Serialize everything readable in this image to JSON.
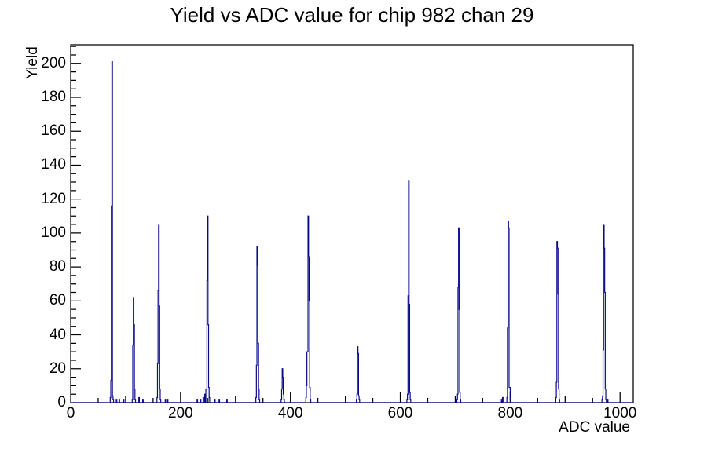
{
  "chart_data": {
    "type": "bar",
    "subtype": "root-style-histogram-outline",
    "title": "Yield vs ADC value for chip 982 chan 29",
    "xlabel": "ADC value",
    "ylabel": "Yield",
    "xlim": [
      0,
      1024
    ],
    "ylim": [
      0,
      211
    ],
    "x_tick_values": [
      0,
      200,
      400,
      600,
      800,
      1000
    ],
    "x_tick_labels": [
      "0",
      "200",
      "400",
      "600",
      "800",
      "1000"
    ],
    "x_mid_tick_step": 100,
    "x_minor_tick_step": 50,
    "y_tick_values": [
      0,
      20,
      40,
      60,
      80,
      100,
      120,
      140,
      160,
      180,
      200
    ],
    "y_tick_labels": [
      "0",
      "20",
      "40",
      "60",
      "80",
      "100",
      "120",
      "140",
      "160",
      "180",
      "200"
    ],
    "y_minor_tick_step": 5,
    "grid": false,
    "legend": false,
    "bin_width_adc": 1,
    "line_color": "#0a0a8c",
    "frame_color": "#000000",
    "background_color": "#ffffff",
    "nonzero_bins": [
      [
        72,
        3
      ],
      [
        73,
        13
      ],
      [
        74,
        116
      ],
      [
        75,
        201
      ],
      [
        76,
        4
      ],
      [
        77,
        2
      ],
      [
        83,
        2
      ],
      [
        88,
        2
      ],
      [
        96,
        2
      ],
      [
        112,
        2
      ],
      [
        113,
        34
      ],
      [
        114,
        62
      ],
      [
        115,
        46
      ],
      [
        116,
        8
      ],
      [
        117,
        2
      ],
      [
        124,
        3
      ],
      [
        131,
        2
      ],
      [
        157,
        3
      ],
      [
        158,
        23
      ],
      [
        159,
        66
      ],
      [
        160,
        105
      ],
      [
        161,
        57
      ],
      [
        162,
        8
      ],
      [
        163,
        2
      ],
      [
        172,
        2
      ],
      [
        176,
        2
      ],
      [
        230,
        2
      ],
      [
        236,
        2
      ],
      [
        241,
        3
      ],
      [
        244,
        5
      ],
      [
        246,
        8
      ],
      [
        247,
        8
      ],
      [
        248,
        72
      ],
      [
        249,
        110
      ],
      [
        250,
        46
      ],
      [
        251,
        9
      ],
      [
        252,
        3
      ],
      [
        262,
        2
      ],
      [
        270,
        2
      ],
      [
        284,
        2
      ],
      [
        337,
        3
      ],
      [
        338,
        22
      ],
      [
        339,
        92
      ],
      [
        340,
        81
      ],
      [
        341,
        35
      ],
      [
        342,
        8
      ],
      [
        343,
        2
      ],
      [
        383,
        2
      ],
      [
        384,
        8
      ],
      [
        385,
        20
      ],
      [
        386,
        15
      ],
      [
        387,
        5
      ],
      [
        388,
        2
      ],
      [
        428,
        3
      ],
      [
        429,
        10
      ],
      [
        430,
        30
      ],
      [
        431,
        30
      ],
      [
        432,
        110
      ],
      [
        433,
        86
      ],
      [
        434,
        60
      ],
      [
        435,
        9
      ],
      [
        436,
        2
      ],
      [
        520,
        2
      ],
      [
        521,
        5
      ],
      [
        522,
        33
      ],
      [
        523,
        29
      ],
      [
        524,
        4
      ],
      [
        525,
        2
      ],
      [
        612,
        2
      ],
      [
        613,
        5
      ],
      [
        614,
        63
      ],
      [
        615,
        131
      ],
      [
        616,
        58
      ],
      [
        617,
        6
      ],
      [
        618,
        2
      ],
      [
        703,
        2
      ],
      [
        704,
        5
      ],
      [
        705,
        68
      ],
      [
        706,
        103
      ],
      [
        707,
        55
      ],
      [
        708,
        6
      ],
      [
        709,
        2
      ],
      [
        784,
        2
      ],
      [
        786,
        3
      ],
      [
        794,
        3
      ],
      [
        795,
        44
      ],
      [
        796,
        107
      ],
      [
        797,
        103
      ],
      [
        798,
        9
      ],
      [
        799,
        9
      ],
      [
        800,
        2
      ],
      [
        883,
        3
      ],
      [
        884,
        12
      ],
      [
        885,
        95
      ],
      [
        886,
        91
      ],
      [
        887,
        64
      ],
      [
        888,
        8
      ],
      [
        889,
        2
      ],
      [
        967,
        2
      ],
      [
        968,
        4
      ],
      [
        969,
        31
      ],
      [
        970,
        105
      ],
      [
        971,
        91
      ],
      [
        972,
        65
      ],
      [
        973,
        8
      ],
      [
        974,
        2
      ],
      [
        977,
        2
      ]
    ]
  },
  "layout_note_values": {
    "peak_max_yield": 201,
    "peak_max_adc": 75
  }
}
